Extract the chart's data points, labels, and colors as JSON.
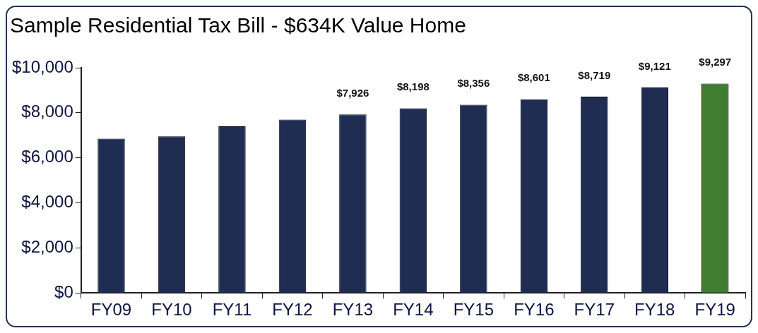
{
  "chart_data": {
    "type": "bar",
    "title": "Sample Residential Tax Bill - $634K Value Home",
    "categories": [
      "FY09",
      "FY10",
      "FY11",
      "FY12",
      "FY13",
      "FY14",
      "FY15",
      "FY16",
      "FY17",
      "FY18",
      "FY19"
    ],
    "values": [
      6850,
      6950,
      7400,
      7700,
      7926,
      8198,
      8356,
      8601,
      8719,
      9121,
      9297
    ],
    "value_labels": [
      null,
      null,
      null,
      null,
      "$7,926",
      "$8,198",
      "$8,356",
      "$8,601",
      "$8,719",
      "$9,121",
      "$9,297"
    ],
    "colors": [
      "#1f2d52",
      "#1f2d52",
      "#1f2d52",
      "#1f2d52",
      "#1f2d52",
      "#1f2d52",
      "#1f2d52",
      "#1f2d52",
      "#1f2d52",
      "#1f2d52",
      "#3f7d30"
    ],
    "ylim": [
      0,
      10000
    ],
    "yticks": [
      {
        "value": 0,
        "label": "$0"
      },
      {
        "value": 2000,
        "label": "$2,000"
      },
      {
        "value": 4000,
        "label": "$4,000"
      },
      {
        "value": 6000,
        "label": "$6,000"
      },
      {
        "value": 8000,
        "label": "$8,000"
      },
      {
        "value": 10000,
        "label": "$10,000"
      }
    ],
    "grid": false,
    "legend": false
  }
}
